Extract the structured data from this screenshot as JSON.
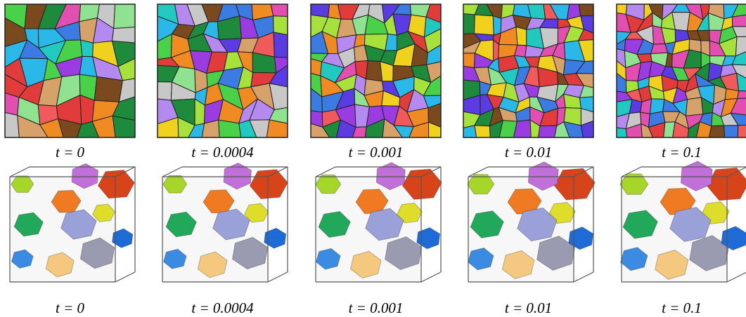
{
  "figure": {
    "rows": [
      {
        "captions": [
          "t = 0",
          "t = 0.0004",
          "t = 0.001",
          "t = 0.01",
          "t = 0.1"
        ]
      },
      {
        "captions": [
          "t = 0",
          "t = 0.0004",
          "t = 0.001",
          "t = 0.01",
          "t = 0.1"
        ]
      }
    ]
  }
}
